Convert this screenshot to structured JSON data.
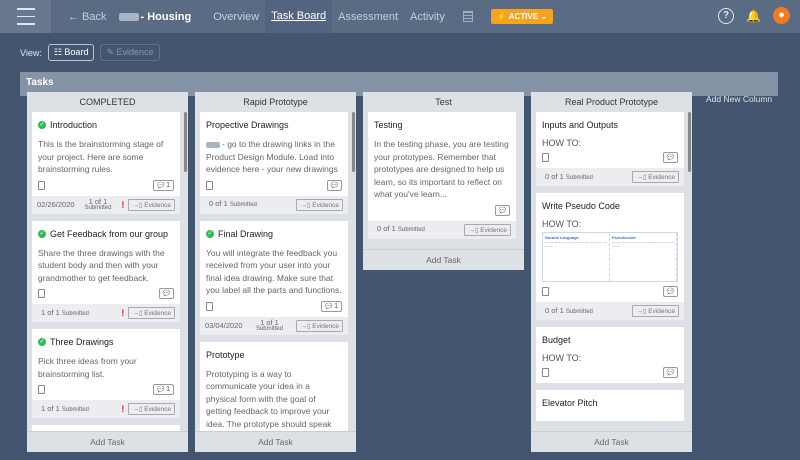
{
  "header": {
    "back": "← Back",
    "title": "- Housing",
    "nav": [
      "Overview",
      "Task Board",
      "Assessment",
      "Activity"
    ],
    "active_nav": "Task Board",
    "status": "⚡ ACTIVE ⌄",
    "status_color": "#f4a420",
    "help": "?",
    "bell": "🔔",
    "avatar": "👤"
  },
  "view": {
    "label": "View:",
    "board": "☷ Board",
    "evidence": "✎ Evidence"
  },
  "tasks_title": "Tasks",
  "add_column": "Add New Column",
  "add_task": "Add Task",
  "columns": [
    {
      "title": "COMPLETED",
      "cards": [
        {
          "title": "Introduction",
          "done": true,
          "desc": "This is the brainstorming stage of your project. Here are some brainstorming rules.",
          "comments": "1",
          "footer": {
            "date": "02/26/2020",
            "count": "1 of 1",
            "submitted": "Submitted",
            "alert": "!",
            "evidence": "→▯ Evidence"
          }
        },
        {
          "title": "Get Feedback from our group",
          "done": true,
          "desc": "Share the three drawings with the student body and then with your grandmother to get feedback.",
          "comments": "",
          "footer": {
            "date": "",
            "count": "1 of 1",
            "submitted": "Submitted",
            "alert": "!",
            "evidence": "→▯ Evidence"
          }
        },
        {
          "title": "Three Drawings",
          "done": true,
          "desc": "Pick three ideas from your brainstorming list.",
          "comments": "1",
          "footer": {
            "date": "",
            "count": "1 of 1",
            "submitted": "Submitted",
            "alert": "!",
            "evidence": "→▯ Evidence"
          }
        },
        {
          "title": "",
          "done": false,
          "desc": ""
        }
      ]
    },
    {
      "title": "Rapid Prototype",
      "cards": [
        {
          "title": "Propective Drawings",
          "desc": "go to the drawing links in the Product Design Module. Load into evidence here - your new drawings",
          "comments": "",
          "footer": {
            "date": "",
            "count": "0 of 1",
            "submitted": "Submitted",
            "evidence": "→▯ Evidence"
          }
        },
        {
          "title": "Final Drawing",
          "done": true,
          "desc": "You will integrate the feedback you received from your user into your final idea drawing. Make sure that you label all the parts and functions.",
          "comments": "1",
          "footer": {
            "date": "03/04/2020",
            "count": "1 of 1",
            "submitted": "Submitted",
            "evidence": "→▯ Evidence"
          }
        },
        {
          "title": "Prototype",
          "desc": "Prototyping is a way to communicate your idea in a physical form with the goal of getting feedback to improve your idea. The prototype should speak for itself."
        }
      ]
    },
    {
      "title": "Test",
      "cards": [
        {
          "title": "Testing",
          "desc": "In the testing phase, you are testing your prototypes. Remember that prototypes are designed to help us learn, so its important to reflect on what you've learn...",
          "comments": "",
          "noclip": true,
          "footer": {
            "date": "",
            "count": "0 of 1",
            "submitted": "Submitted",
            "evidence": "→▯ Evidence"
          }
        }
      ]
    },
    {
      "title": "Real Product Prototype",
      "cards": [
        {
          "title": "Inputs and Outputs",
          "how": "HOW TO:",
          "comments": "",
          "footer": {
            "date": "",
            "count": "0 of 1",
            "submitted": "Submitted",
            "evidence": "→▯ Evidence"
          }
        },
        {
          "title": "Write Pseudo Code",
          "how": "HOW TO:",
          "image": {
            "left": "Normal Language",
            "right": "Pseudocode"
          },
          "comments": "",
          "footer": {
            "date": "",
            "count": "0 of 1",
            "submitted": "Submitted",
            "evidence": "→▯ Evidence"
          }
        },
        {
          "title": "Budget",
          "how": "HOW TO:",
          "comments": ""
        },
        {
          "title": "Elevator Pitch"
        }
      ]
    }
  ]
}
